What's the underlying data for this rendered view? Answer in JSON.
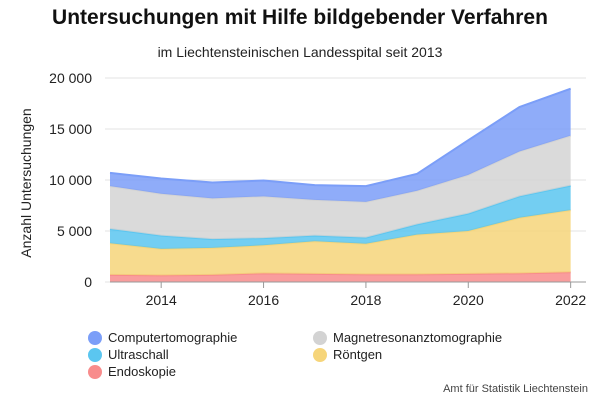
{
  "header": {
    "title": "Untersuchungen mit Hilfe bildgebender Verfahren",
    "subtitle": "im Liechtensteinischen Landesspital seit 2013"
  },
  "footer": {
    "source": "Amt für Statistik Liechtenstein"
  },
  "chart_data": {
    "type": "area",
    "stacked": true,
    "title": "Untersuchungen mit Hilfe bildgebender Verfahren",
    "subtitle": "im Liechtensteinischen Landesspital seit 2013",
    "xlabel": "",
    "ylabel": "Anzahl Untersuchungen",
    "x": [
      2013,
      2014,
      2015,
      2016,
      2017,
      2018,
      2019,
      2020,
      2021,
      2022
    ],
    "xlim": [
      2013,
      2022.3
    ],
    "ylim": [
      0,
      20000
    ],
    "x_ticks": [
      2014,
      2016,
      2018,
      2020,
      2022
    ],
    "y_ticks": [
      0,
      5000,
      10000,
      15000,
      20000
    ],
    "x_tick_labels": [
      "2014",
      "2016",
      "2018",
      "2020",
      "2022"
    ],
    "y_tick_labels": [
      "0",
      "5 000",
      "10 000",
      "15 000",
      "20 000"
    ],
    "grid": true,
    "legend_position": "bottom",
    "series": [
      {
        "name": "Endoskopie",
        "color": "#f88c8c",
        "values": [
          700,
          650,
          700,
          850,
          800,
          750,
          750,
          800,
          850,
          950
        ]
      },
      {
        "name": "Röntgen",
        "color": "#f6d57a",
        "values": [
          3100,
          2600,
          2650,
          2750,
          3200,
          3000,
          3900,
          4200,
          5450,
          6100
        ]
      },
      {
        "name": "Ultraschall",
        "color": "#5bc6f0",
        "values": [
          1400,
          1300,
          850,
          700,
          550,
          600,
          1000,
          1700,
          2100,
          2400
        ]
      },
      {
        "name": "Magnetresonanztomographie",
        "color": "#d3d3d3",
        "values": [
          4200,
          4100,
          4000,
          4100,
          3500,
          3500,
          3300,
          3800,
          4400,
          4900
        ]
      },
      {
        "name": "Computertomographie",
        "color": "#7b9ef8",
        "values": [
          1300,
          1500,
          1550,
          1550,
          1450,
          1550,
          1650,
          3400,
          4350,
          4600
        ]
      }
    ],
    "legend_order": [
      "Computertomographie",
      "Magnetresonanztomographie",
      "Ultraschall",
      "Röntgen",
      "Endoskopie"
    ]
  }
}
